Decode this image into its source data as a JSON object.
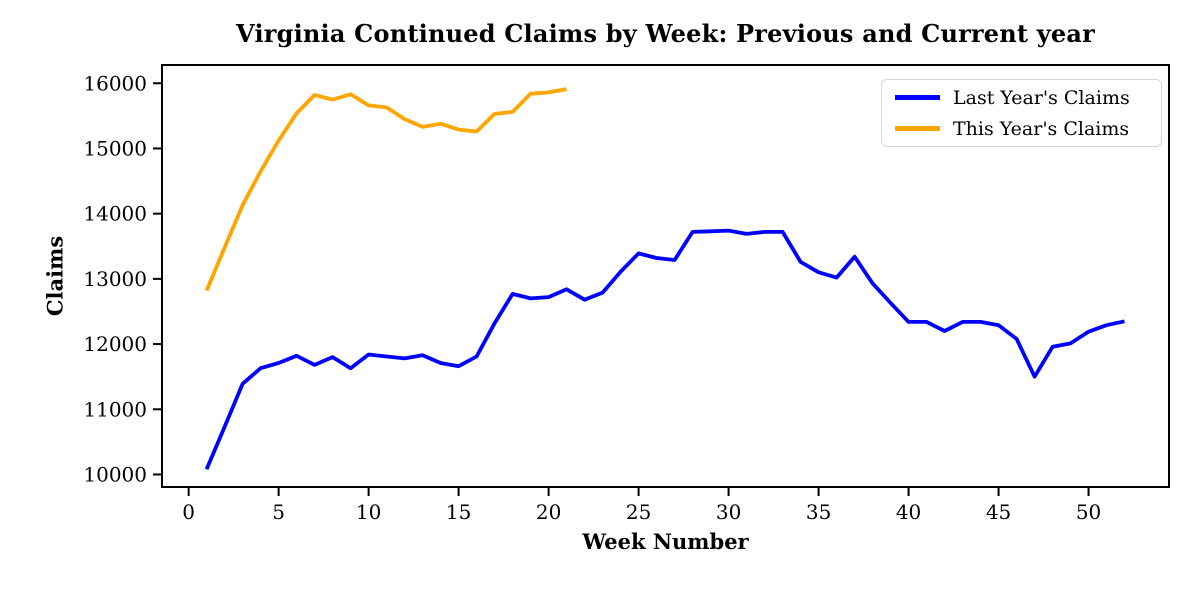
{
  "chart_data": {
    "type": "line",
    "title": "Virginia Continued Claims by Week: Previous and Current year",
    "xlabel": "Week Number",
    "ylabel": "Claims",
    "xlim": [
      -1.48,
      54.47
    ],
    "ylim": [
      9808,
      16280
    ],
    "xticks": [
      0,
      5,
      10,
      15,
      20,
      25,
      30,
      35,
      40,
      45,
      50
    ],
    "yticks": [
      10000,
      11000,
      12000,
      13000,
      14000,
      15000,
      16000
    ],
    "grid": false,
    "legend_position": "upper-right",
    "series": [
      {
        "name": "Last Year's Claims",
        "color": "#0000ff",
        "x": [
          1,
          2,
          3,
          4,
          5,
          6,
          7,
          8,
          9,
          10,
          11,
          12,
          13,
          14,
          15,
          16,
          17,
          18,
          19,
          20,
          21,
          22,
          23,
          24,
          25,
          26,
          27,
          28,
          29,
          30,
          31,
          32,
          33,
          34,
          35,
          36,
          37,
          38,
          39,
          40,
          41,
          42,
          43,
          44,
          45,
          46,
          47,
          48,
          49,
          50,
          51,
          52
        ],
        "values": [
          10080,
          10730,
          11390,
          11630,
          11710,
          11820,
          11680,
          11800,
          11630,
          11840,
          11810,
          11780,
          11830,
          11710,
          11660,
          11810,
          12320,
          12770,
          12700,
          12720,
          12840,
          12680,
          12790,
          13110,
          13390,
          13320,
          13290,
          13720,
          13730,
          13740,
          13690,
          13720,
          13720,
          13260,
          13100,
          13020,
          13340,
          12930,
          12630,
          12340,
          12340,
          12200,
          12340,
          12340,
          12290,
          12080,
          11500,
          11960,
          12010,
          12190,
          12290,
          12350
        ]
      },
      {
        "name": "This Year's Claims",
        "color": "#ffa500",
        "x": [
          1,
          2,
          3,
          4,
          5,
          6,
          7,
          8,
          9,
          10,
          11,
          12,
          13,
          14,
          15,
          16,
          17,
          18,
          19,
          20,
          21
        ],
        "values": [
          12820,
          13480,
          14130,
          14650,
          15120,
          15540,
          15820,
          15750,
          15830,
          15660,
          15630,
          15450,
          15330,
          15380,
          15290,
          15260,
          15530,
          15560,
          15840,
          15860,
          15910
        ]
      }
    ]
  }
}
